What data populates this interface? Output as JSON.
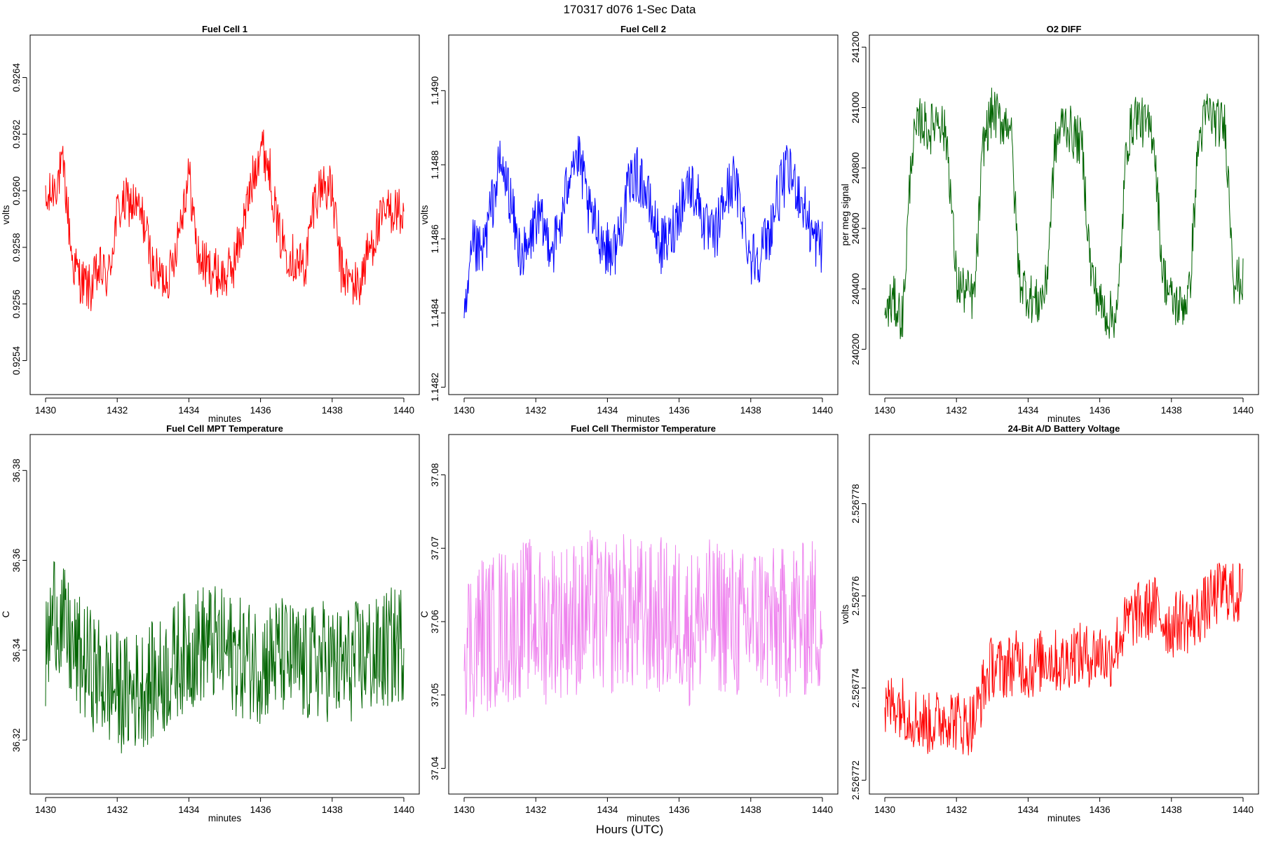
{
  "figure": {
    "title": "170317   d076   1-Sec Data",
    "footer_label": "Hours (UTC)"
  },
  "chart_data": [
    {
      "type": "line",
      "title": "Fuel Cell 1",
      "xlabel": "minutes",
      "ylabel": "volts",
      "color": "#ff0000",
      "xlim": [
        1429.6,
        1440.4
      ],
      "ylim": [
        0.92528,
        0.92655
      ],
      "xticks": [
        "1430",
        "1432",
        "1434",
        "1436",
        "1438",
        "1440"
      ],
      "yticks": [
        "0.9254",
        "0.9256",
        "0.9258",
        "0.9260",
        "0.9262",
        "0.9264"
      ],
      "x": [
        1430.0,
        1430.25,
        1430.5,
        1430.75,
        1431.0,
        1431.25,
        1431.5,
        1431.75,
        1432.0,
        1432.25,
        1432.5,
        1432.75,
        1433.0,
        1433.25,
        1433.5,
        1433.75,
        1434.0,
        1434.25,
        1434.5,
        1434.75,
        1435.0,
        1435.25,
        1435.5,
        1435.75,
        1436.0,
        1436.25,
        1436.5,
        1436.75,
        1437.0,
        1437.25,
        1437.5,
        1437.75,
        1438.0,
        1438.25,
        1438.5,
        1438.75,
        1439.0,
        1439.25,
        1439.5,
        1439.75,
        1440.0
      ],
      "y": [
        0.92594,
        0.92602,
        0.92608,
        0.92575,
        0.92568,
        0.92565,
        0.92572,
        0.92569,
        0.92592,
        0.92596,
        0.92595,
        0.92589,
        0.92572,
        0.92569,
        0.92571,
        0.92589,
        0.92606,
        0.92577,
        0.92573,
        0.92571,
        0.92569,
        0.92574,
        0.92587,
        0.92602,
        0.92617,
        0.92608,
        0.92585,
        0.92579,
        0.92575,
        0.92573,
        0.92597,
        0.92603,
        0.92599,
        0.92572,
        0.92568,
        0.92566,
        0.92578,
        0.92586,
        0.92592,
        0.92594,
        0.9259
      ]
    },
    {
      "type": "line",
      "title": "Fuel Cell 2",
      "xlabel": "minutes",
      "ylabel": "volts",
      "color": "#0000ff",
      "xlim": [
        1429.6,
        1440.4
      ],
      "ylim": [
        1.14818,
        1.14915
      ],
      "xticks": [
        "1430",
        "1432",
        "1434",
        "1436",
        "1438",
        "1440"
      ],
      "yticks": [
        "1.1482",
        "1.1484",
        "1.1486",
        "1.1488",
        "1.1490"
      ],
      "x": [
        1430.0,
        1430.25,
        1430.5,
        1430.75,
        1431.0,
        1431.25,
        1431.5,
        1431.75,
        1432.0,
        1432.25,
        1432.5,
        1432.75,
        1433.0,
        1433.25,
        1433.5,
        1433.75,
        1434.0,
        1434.25,
        1434.5,
        1434.75,
        1435.0,
        1435.25,
        1435.5,
        1435.75,
        1436.0,
        1436.25,
        1436.5,
        1436.75,
        1437.0,
        1437.25,
        1437.5,
        1437.75,
        1438.0,
        1438.25,
        1438.5,
        1438.75,
        1439.0,
        1439.25,
        1439.5,
        1439.75,
        1440.0
      ],
      "y": [
        1.14835,
        1.14858,
        1.14855,
        1.14868,
        1.1488,
        1.14873,
        1.14858,
        1.14855,
        1.14866,
        1.14862,
        1.14858,
        1.14866,
        1.14883,
        1.1488,
        1.14866,
        1.14862,
        1.14857,
        1.14858,
        1.1487,
        1.14878,
        1.14875,
        1.14866,
        1.14858,
        1.1486,
        1.14868,
        1.14875,
        1.14872,
        1.14862,
        1.1486,
        1.1487,
        1.14876,
        1.14868,
        1.14855,
        1.14856,
        1.14861,
        1.14871,
        1.14878,
        1.14875,
        1.14868,
        1.1486,
        1.14858
      ]
    },
    {
      "type": "line",
      "title": "O2 DIFF",
      "xlabel": "minutes",
      "ylabel": "per meg signal",
      "color": "#006400",
      "xlim": [
        1429.6,
        1440.4
      ],
      "ylim": [
        240050,
        241240
      ],
      "xticks": [
        "1430",
        "1432",
        "1434",
        "1436",
        "1438",
        "1440"
      ],
      "yticks": [
        "240200",
        "240400",
        "240600",
        "240800",
        "241000",
        "241200"
      ],
      "x": [
        1430.0,
        1430.25,
        1430.5,
        1430.75,
        1431.0,
        1431.25,
        1431.5,
        1431.75,
        1432.0,
        1432.25,
        1432.5,
        1432.75,
        1433.0,
        1433.25,
        1433.5,
        1433.75,
        1434.0,
        1434.25,
        1434.5,
        1434.75,
        1435.0,
        1435.25,
        1435.5,
        1435.75,
        1436.0,
        1436.25,
        1436.5,
        1436.75,
        1437.0,
        1437.25,
        1437.5,
        1437.75,
        1438.0,
        1438.25,
        1438.5,
        1438.75,
        1439.0,
        1439.25,
        1439.5,
        1439.75,
        1440.0
      ],
      "y": [
        240320,
        240360,
        240300,
        240860,
        240960,
        240920,
        240980,
        240880,
        240420,
        240390,
        240370,
        240880,
        240990,
        240950,
        240960,
        240440,
        240380,
        240350,
        240400,
        240870,
        240960,
        240910,
        240880,
        240460,
        240350,
        240310,
        240320,
        240880,
        240980,
        240940,
        240920,
        240460,
        240360,
        240340,
        240380,
        240880,
        240990,
        240950,
        240940,
        240430,
        240420
      ]
    },
    {
      "type": "line",
      "title": "Fuel Cell MPT Temperature",
      "xlabel": "minutes",
      "ylabel": "C",
      "color": "#006400",
      "xlim": [
        1429.6,
        1440.4
      ],
      "ylim": [
        36.308,
        36.388
      ],
      "xticks": [
        "1430",
        "1432",
        "1434",
        "1436",
        "1438",
        "1440"
      ],
      "yticks": [
        "36.32",
        "36.34",
        "36.36",
        "36.38"
      ],
      "x": [
        1430.0,
        1430.25,
        1430.5,
        1430.75,
        1431.0,
        1431.25,
        1431.5,
        1431.75,
        1432.0,
        1432.25,
        1432.5,
        1432.75,
        1433.0,
        1433.25,
        1433.5,
        1433.75,
        1434.0,
        1434.25,
        1434.5,
        1434.75,
        1435.0,
        1435.25,
        1435.5,
        1435.75,
        1436.0,
        1436.25,
        1436.5,
        1436.75,
        1437.0,
        1437.25,
        1437.5,
        1437.75,
        1438.0,
        1438.25,
        1438.5,
        1438.75,
        1439.0,
        1439.25,
        1439.5,
        1439.75,
        1440.0
      ],
      "y": [
        36.338,
        36.35,
        36.345,
        36.34,
        36.338,
        36.336,
        36.334,
        36.332,
        36.331,
        36.33,
        36.331,
        36.332,
        36.333,
        36.334,
        36.336,
        36.339,
        36.34,
        36.341,
        36.342,
        36.341,
        36.34,
        36.339,
        36.338,
        36.338,
        36.337,
        36.338,
        36.339,
        36.338,
        36.337,
        36.336,
        36.337,
        36.338,
        36.337,
        36.336,
        36.337,
        36.338,
        36.339,
        36.338,
        36.34,
        36.341,
        36.342
      ]
    },
    {
      "type": "line",
      "title": "Fuel Cell Thermistor Temperature",
      "xlabel": "minutes",
      "ylabel": "C",
      "color": "#ee82ee",
      "xlim": [
        1429.6,
        1440.4
      ],
      "ylim": [
        37.0365,
        37.0855
      ],
      "xticks": [
        "1430",
        "1432",
        "1434",
        "1436",
        "1438",
        "1440"
      ],
      "yticks": [
        "37.04",
        "37.05",
        "37.06",
        "37.07",
        "37.08"
      ],
      "x": [
        1430.0,
        1430.25,
        1430.5,
        1430.75,
        1431.0,
        1431.25,
        1431.5,
        1431.75,
        1432.0,
        1432.25,
        1432.5,
        1432.75,
        1433.0,
        1433.25,
        1433.5,
        1433.75,
        1434.0,
        1434.25,
        1434.5,
        1434.75,
        1435.0,
        1435.25,
        1435.5,
        1435.75,
        1436.0,
        1436.25,
        1436.5,
        1436.75,
        1437.0,
        1437.25,
        1437.5,
        1437.75,
        1438.0,
        1438.25,
        1438.5,
        1438.75,
        1439.0,
        1439.25,
        1439.5,
        1439.75,
        1440.0
      ],
      "y": [
        37.058,
        37.057,
        37.059,
        37.058,
        37.06,
        37.059,
        37.06,
        37.061,
        37.06,
        37.059,
        37.061,
        37.06,
        37.061,
        37.06,
        37.062,
        37.061,
        37.06,
        37.061,
        37.062,
        37.06,
        37.061,
        37.06,
        37.061,
        37.06,
        37.061,
        37.059,
        37.06,
        37.061,
        37.06,
        37.061,
        37.06,
        37.059,
        37.06,
        37.061,
        37.06,
        37.059,
        37.06,
        37.061,
        37.06,
        37.061,
        37.06
      ]
    },
    {
      "type": "line",
      "title": "24-Bit A/D Battery Voltage",
      "xlabel": "minutes",
      "ylabel": "volts",
      "color": "#ff0000",
      "xlim": [
        1429.6,
        1440.4
      ],
      "ylim": [
        2.5267717,
        2.5267795
      ],
      "xticks": [
        "1430",
        "1432",
        "1434",
        "1436",
        "1438",
        "1440"
      ],
      "yticks": [
        "2.526772",
        "2.526774",
        "2.526776",
        "2.526778"
      ],
      "x": [
        1430.0,
        1430.25,
        1430.5,
        1430.75,
        1431.0,
        1431.25,
        1431.5,
        1431.75,
        1432.0,
        1432.25,
        1432.5,
        1432.75,
        1433.0,
        1433.25,
        1433.5,
        1433.75,
        1434.0,
        1434.25,
        1434.5,
        1434.75,
        1435.0,
        1435.25,
        1435.5,
        1435.75,
        1436.0,
        1436.25,
        1436.5,
        1436.75,
        1437.0,
        1437.25,
        1437.5,
        1437.75,
        1438.0,
        1438.25,
        1438.5,
        1438.75,
        1439.0,
        1439.25,
        1439.5,
        1439.75,
        1440.0
      ],
      "y": [
        2.5267735,
        2.5267737,
        2.5267736,
        2.5267734,
        2.5267733,
        2.5267732,
        2.5267733,
        2.5267734,
        2.5267733,
        2.5267732,
        2.5267733,
        2.526774,
        2.5267745,
        2.5267744,
        2.5267745,
        2.5267746,
        2.5267744,
        2.5267745,
        2.5267747,
        2.5267746,
        2.5267745,
        2.5267748,
        2.5267747,
        2.5267747,
        2.5267748,
        2.5267746,
        2.526775,
        2.5267754,
        2.5267756,
        2.5267756,
        2.5267758,
        2.5267755,
        2.5267753,
        2.5267755,
        2.5267754,
        2.5267756,
        2.5267758,
        2.526776,
        2.5267762,
        2.526776,
        2.5267761
      ]
    }
  ]
}
